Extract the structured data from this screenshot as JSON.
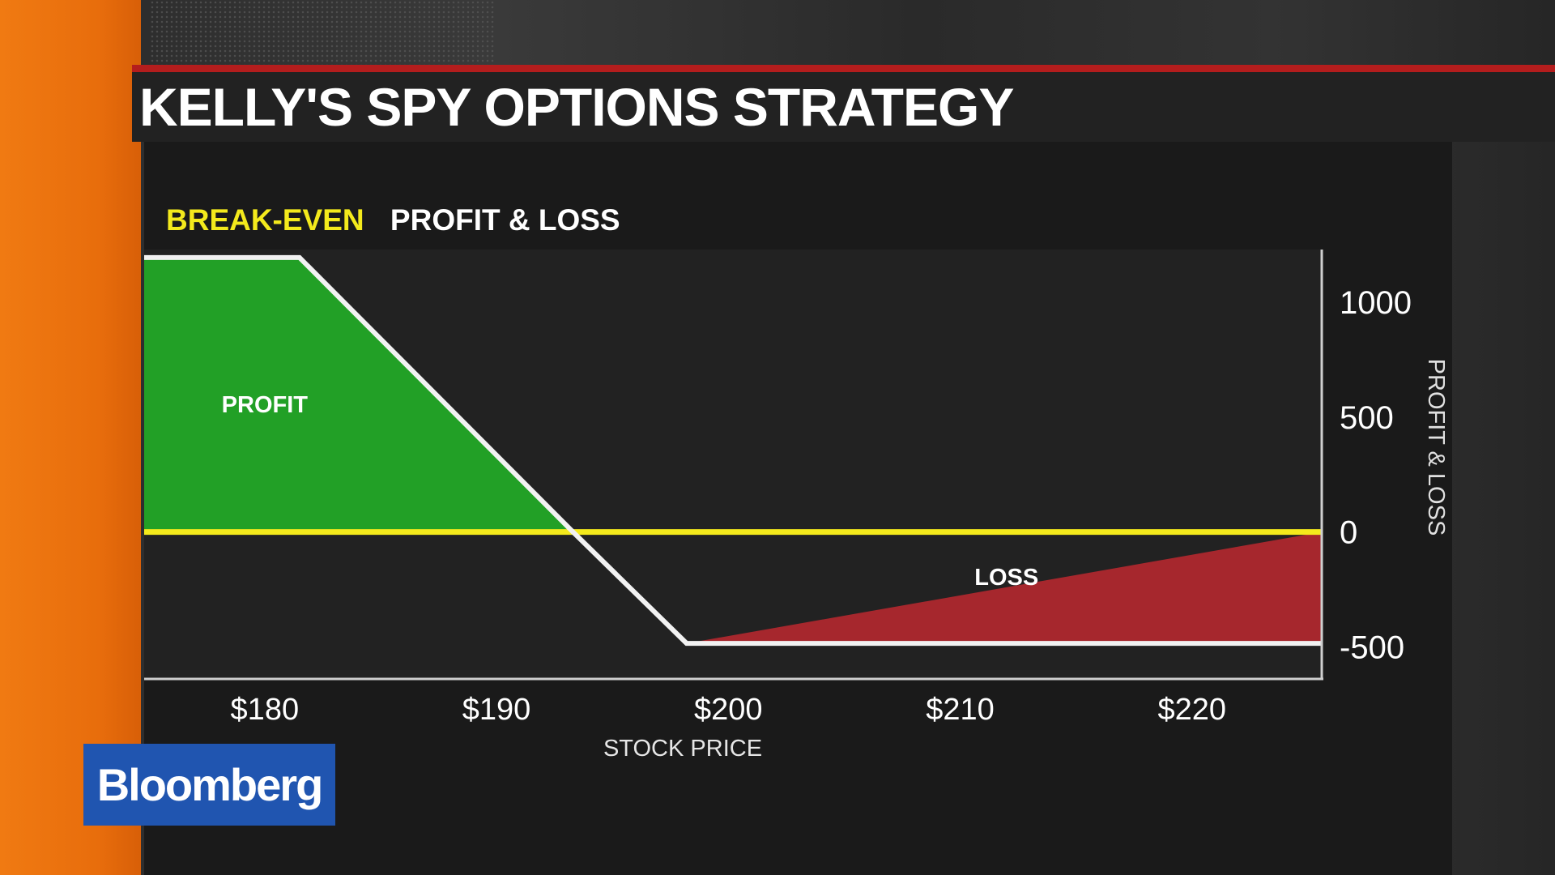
{
  "title": "KELLY'S SPY OPTIONS STRATEGY",
  "legend": {
    "breakeven": "BREAK-EVEN",
    "profit_loss": "PROFIT & LOSS"
  },
  "logo": "Bloomberg",
  "colors": {
    "profit": "#22a026",
    "loss": "#a6272d",
    "breakeven": "#f4ea1c",
    "payoff_line": "#f2f2f2",
    "plot_bg": "#222222",
    "brand_orange": "#f07a12",
    "title_red": "#b41d1d",
    "logo_blue": "#2055b0"
  },
  "chart_data": {
    "type": "line",
    "title": "KELLY'S SPY OPTIONS STRATEGY",
    "xlabel": "STOCK PRICE",
    "ylabel": "PROFIT & LOSS",
    "x_ticks": [
      180,
      190,
      200,
      210,
      220
    ],
    "x_tick_labels": [
      "$180",
      "$190",
      "$200",
      "$210",
      "$220"
    ],
    "y_ticks": [
      1000,
      500,
      0,
      -500
    ],
    "y_tick_labels": [
      "1000",
      "500",
      "0",
      "-500"
    ],
    "xlim": [
      174.8,
      225.6
    ],
    "ylim": [
      -640,
      1230
    ],
    "breakeven_value": 0,
    "payoff": {
      "x": [
        174.8,
        181.5,
        193.3,
        198.2,
        225.6
      ],
      "y": [
        1195,
        1195,
        0,
        -485,
        -485
      ]
    },
    "annotations": [
      {
        "text": "PROFIT",
        "x": 180,
        "y": 520
      },
      {
        "text": "LOSS",
        "x": 212,
        "y": -230
      }
    ],
    "grid": false,
    "y_axis_side": "right",
    "legend_position": "top-left"
  }
}
